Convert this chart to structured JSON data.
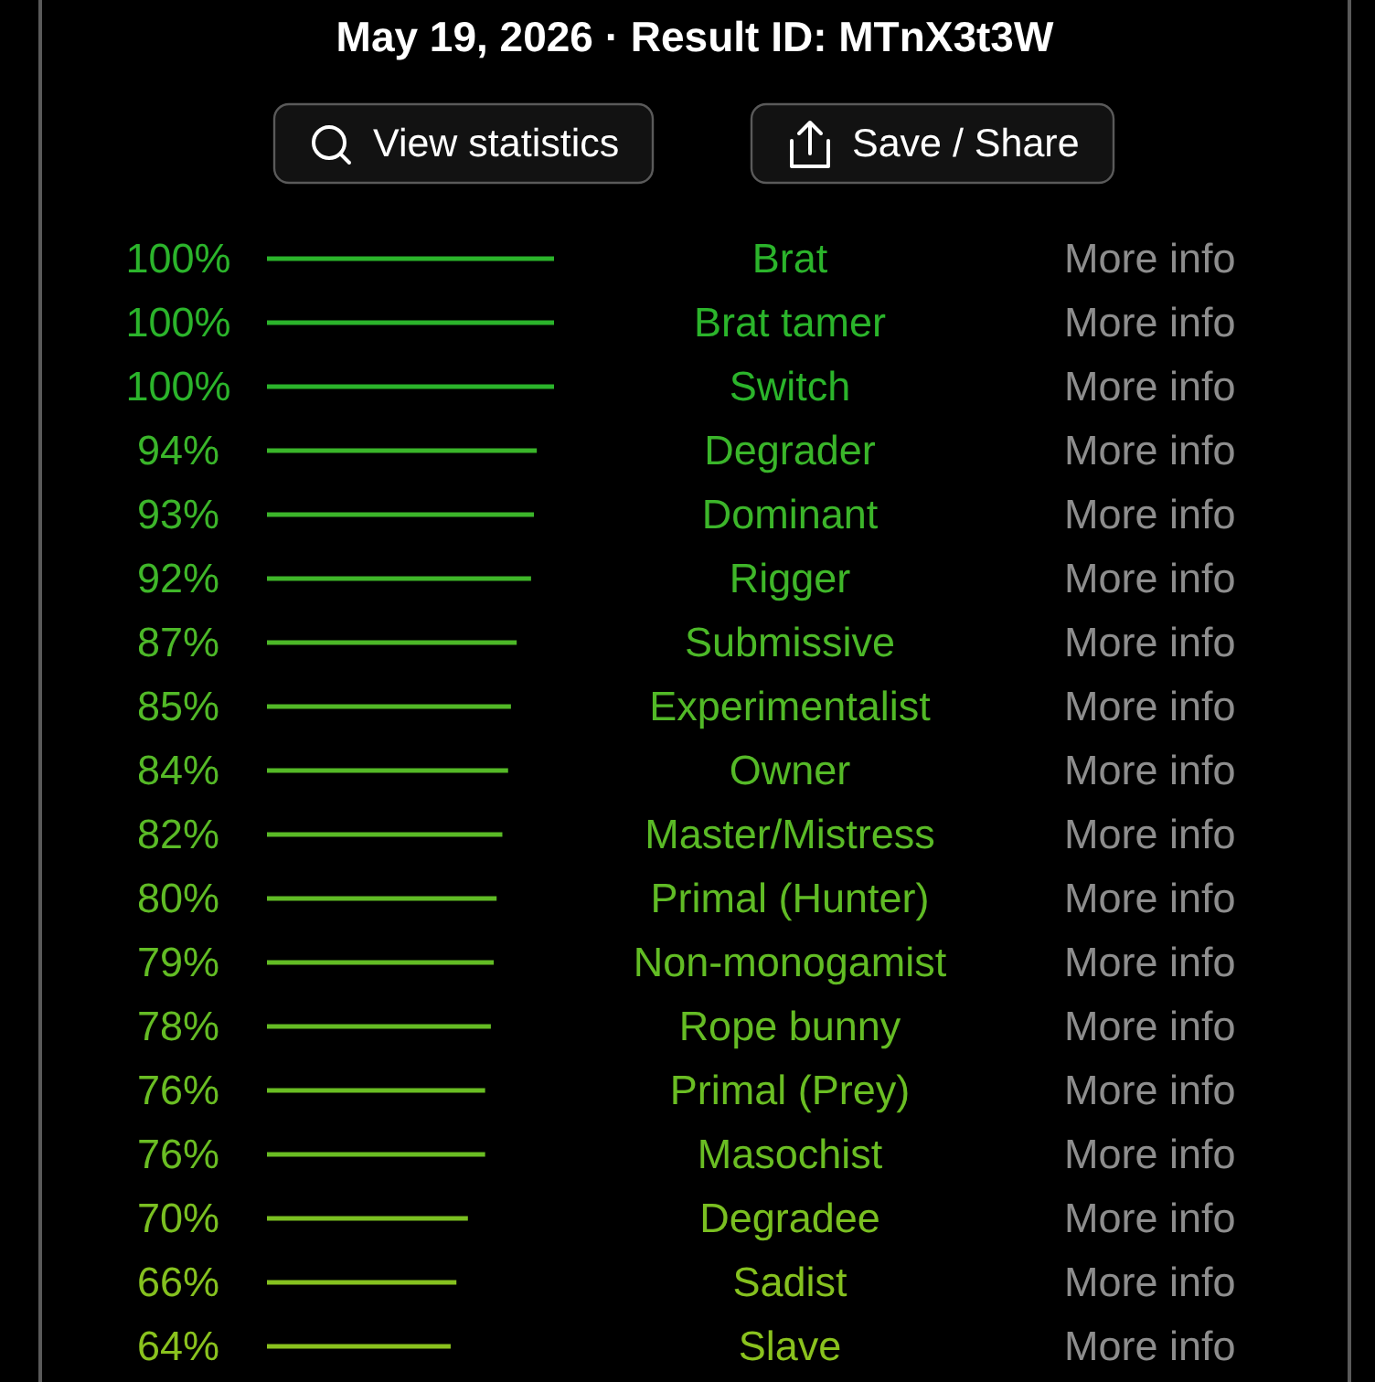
{
  "chart_data": {
    "type": "bar",
    "orientation": "horizontal",
    "title": "May 19, 2026 · Result ID: MTnX3t3W",
    "categories": [
      "Brat",
      "Brat tamer",
      "Switch",
      "Degrader",
      "Dominant",
      "Rigger",
      "Submissive",
      "Experimentalist",
      "Owner",
      "Master/Mistress",
      "Primal (Hunter)",
      "Non-monogamist",
      "Rope bunny",
      "Primal (Prey)",
      "Masochist",
      "Degradee",
      "Sadist",
      "Slave"
    ],
    "values": [
      100,
      100,
      100,
      94,
      93,
      92,
      87,
      85,
      84,
      82,
      80,
      79,
      78,
      76,
      76,
      70,
      66,
      64
    ],
    "value_labels": [
      "100%",
      "100%",
      "100%",
      "94%",
      "93%",
      "92%",
      "87%",
      "85%",
      "84%",
      "82%",
      "80%",
      "79%",
      "78%",
      "76%",
      "76%",
      "70%",
      "66%",
      "64%"
    ],
    "colors": [
      "#2bb42b",
      "#2bb42b",
      "#2bb42b",
      "#3ab52a",
      "#3cb52a",
      "#3fb629",
      "#4cb828",
      "#52b927",
      "#55b927",
      "#5aba26",
      "#60bb25",
      "#62bc24",
      "#65bc24",
      "#6abd23",
      "#6abd23",
      "#7abf21",
      "#85c11f",
      "#8ac21e"
    ],
    "xlim": [
      0,
      100
    ],
    "tick_labels": false,
    "annotations": [
      "View statistics",
      "Save / Share",
      "More info",
      "More info",
      "More info",
      "More info",
      "More info",
      "More info",
      "More info",
      "More info",
      "More info",
      "More info",
      "More info",
      "More info",
      "More info",
      "More info",
      "More info",
      "More info",
      "More info",
      "More info"
    ]
  }
}
